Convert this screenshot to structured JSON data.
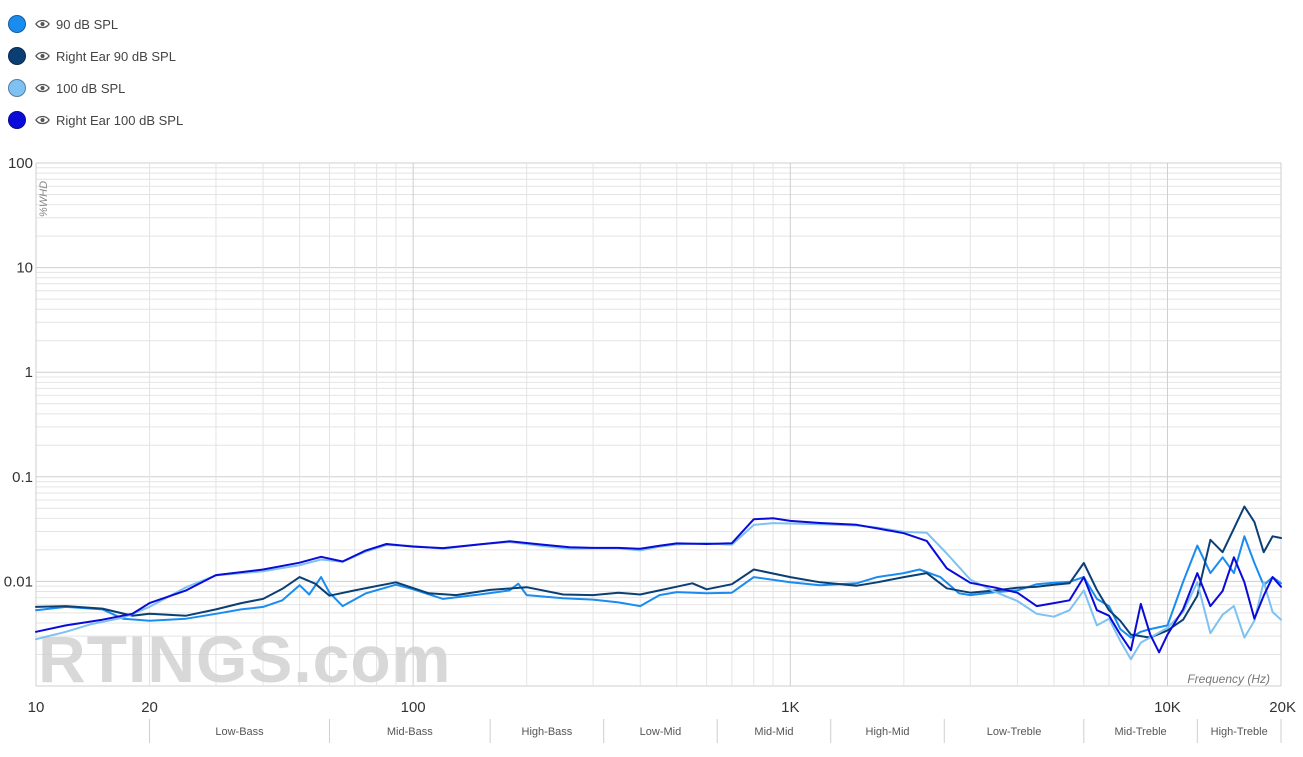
{
  "legend": [
    {
      "label": "90 dB SPL",
      "color": "#1a8cf0"
    },
    {
      "label": "Right Ear 90 dB SPL",
      "color": "#0b3f73"
    },
    {
      "label": "100 dB SPL",
      "color": "#7ec1f2"
    },
    {
      "label": "Right Ear 100 dB SPL",
      "color": "#0b0bd9"
    }
  ],
  "watermark": "RTINGS.com",
  "chart_data": {
    "type": "line",
    "xlabel": "Frequency (Hz)",
    "ylabel": "%WHD",
    "xscale": "log",
    "yscale": "log",
    "xlim": [
      10,
      20000
    ],
    "ylim": [
      0.001,
      100
    ],
    "grid": true,
    "legend_position": "top-left",
    "x_ticks": [
      {
        "value": 10,
        "label": "10"
      },
      {
        "value": 20,
        "label": "20"
      },
      {
        "value": 100,
        "label": "100"
      },
      {
        "value": 1000,
        "label": "1K"
      },
      {
        "value": 10000,
        "label": "10K"
      },
      {
        "value": 20000,
        "label": "20K"
      }
    ],
    "y_ticks": [
      {
        "value": 100,
        "label": "100"
      },
      {
        "value": 10,
        "label": "10"
      },
      {
        "value": 1,
        "label": "1"
      },
      {
        "value": 0.1,
        "label": "0.1"
      },
      {
        "value": 0.01,
        "label": "0.01"
      }
    ],
    "bands": [
      {
        "label": "Low-Bass",
        "from": 20,
        "to": 60
      },
      {
        "label": "Mid-Bass",
        "from": 60,
        "to": 160
      },
      {
        "label": "High-Bass",
        "from": 160,
        "to": 320
      },
      {
        "label": "Low-Mid",
        "from": 320,
        "to": 640
      },
      {
        "label": "Mid-Mid",
        "from": 640,
        "to": 1280
      },
      {
        "label": "High-Mid",
        "from": 1280,
        "to": 2560
      },
      {
        "label": "Low-Treble",
        "from": 2560,
        "to": 6000
      },
      {
        "label": "Mid-Treble",
        "from": 6000,
        "to": 12000
      },
      {
        "label": "High-Treble",
        "from": 12000,
        "to": 20000
      }
    ],
    "series": [
      {
        "name": "90 dB SPL",
        "color": "#1a8cf0",
        "points": [
          [
            10,
            0.0053
          ],
          [
            12,
            0.0057
          ],
          [
            15,
            0.0054
          ],
          [
            17,
            0.0044
          ],
          [
            20,
            0.0042
          ],
          [
            25,
            0.0044
          ],
          [
            30,
            0.0049
          ],
          [
            35,
            0.0054
          ],
          [
            40,
            0.0057
          ],
          [
            45,
            0.0066
          ],
          [
            50,
            0.0092
          ],
          [
            53,
            0.0075
          ],
          [
            57,
            0.011
          ],
          [
            60,
            0.0078
          ],
          [
            65,
            0.0058
          ],
          [
            75,
            0.0077
          ],
          [
            90,
            0.0093
          ],
          [
            100,
            0.0084
          ],
          [
            120,
            0.0068
          ],
          [
            150,
            0.0075
          ],
          [
            180,
            0.0082
          ],
          [
            190,
            0.0095
          ],
          [
            200,
            0.0074
          ],
          [
            250,
            0.0069
          ],
          [
            300,
            0.0067
          ],
          [
            350,
            0.0063
          ],
          [
            400,
            0.0058
          ],
          [
            450,
            0.0074
          ],
          [
            500,
            0.0079
          ],
          [
            600,
            0.0077
          ],
          [
            700,
            0.0078
          ],
          [
            800,
            0.011
          ],
          [
            1000,
            0.0098
          ],
          [
            1200,
            0.0092
          ],
          [
            1500,
            0.0096
          ],
          [
            1700,
            0.011
          ],
          [
            2000,
            0.012
          ],
          [
            2200,
            0.013
          ],
          [
            2500,
            0.011
          ],
          [
            2800,
            0.0077
          ],
          [
            3000,
            0.0074
          ],
          [
            3500,
            0.0079
          ],
          [
            4000,
            0.0082
          ],
          [
            4500,
            0.0094
          ],
          [
            5000,
            0.0097
          ],
          [
            5500,
            0.0099
          ],
          [
            6000,
            0.011
          ],
          [
            6500,
            0.0068
          ],
          [
            7000,
            0.0058
          ],
          [
            7500,
            0.0035
          ],
          [
            8000,
            0.0029
          ],
          [
            8500,
            0.0033
          ],
          [
            9000,
            0.0035
          ],
          [
            10000,
            0.0038
          ],
          [
            11000,
            0.0099
          ],
          [
            12000,
            0.022
          ],
          [
            13000,
            0.012
          ],
          [
            14000,
            0.017
          ],
          [
            15000,
            0.012
          ],
          [
            16000,
            0.027
          ],
          [
            17000,
            0.015
          ],
          [
            18000,
            0.0092
          ],
          [
            19000,
            0.011
          ],
          [
            20000,
            0.0096
          ]
        ]
      },
      {
        "name": "Right Ear 90 dB SPL",
        "color": "#0b3f73",
        "points": [
          [
            10,
            0.0057
          ],
          [
            12,
            0.0058
          ],
          [
            15,
            0.0055
          ],
          [
            18,
            0.0047
          ],
          [
            20,
            0.0049
          ],
          [
            25,
            0.0047
          ],
          [
            30,
            0.0054
          ],
          [
            35,
            0.0062
          ],
          [
            40,
            0.0068
          ],
          [
            45,
            0.0085
          ],
          [
            50,
            0.011
          ],
          [
            55,
            0.0095
          ],
          [
            60,
            0.0073
          ],
          [
            70,
            0.0082
          ],
          [
            90,
            0.0098
          ],
          [
            110,
            0.0077
          ],
          [
            130,
            0.0074
          ],
          [
            160,
            0.0083
          ],
          [
            200,
            0.0088
          ],
          [
            250,
            0.0075
          ],
          [
            300,
            0.0074
          ],
          [
            350,
            0.0078
          ],
          [
            400,
            0.0075
          ],
          [
            450,
            0.0082
          ],
          [
            500,
            0.0089
          ],
          [
            550,
            0.0096
          ],
          [
            600,
            0.0084
          ],
          [
            700,
            0.0094
          ],
          [
            800,
            0.013
          ],
          [
            1000,
            0.011
          ],
          [
            1200,
            0.0098
          ],
          [
            1500,
            0.0091
          ],
          [
            1700,
            0.0098
          ],
          [
            2000,
            0.011
          ],
          [
            2300,
            0.012
          ],
          [
            2600,
            0.0086
          ],
          [
            3000,
            0.0078
          ],
          [
            3500,
            0.0082
          ],
          [
            4000,
            0.0087
          ],
          [
            4500,
            0.0089
          ],
          [
            5000,
            0.0093
          ],
          [
            5500,
            0.0096
          ],
          [
            6000,
            0.015
          ],
          [
            6500,
            0.0083
          ],
          [
            7000,
            0.0053
          ],
          [
            7500,
            0.0042
          ],
          [
            8000,
            0.0031
          ],
          [
            9000,
            0.0029
          ],
          [
            10000,
            0.0034
          ],
          [
            11000,
            0.0043
          ],
          [
            12000,
            0.0073
          ],
          [
            13000,
            0.025
          ],
          [
            14000,
            0.019
          ],
          [
            15000,
            0.032
          ],
          [
            16000,
            0.052
          ],
          [
            17000,
            0.037
          ],
          [
            18000,
            0.019
          ],
          [
            19000,
            0.027
          ],
          [
            20000,
            0.026
          ]
        ]
      },
      {
        "name": "100 dB SPL",
        "color": "#7ec1f2",
        "points": [
          [
            10,
            0.0028
          ],
          [
            12,
            0.0033
          ],
          [
            14,
            0.0039
          ],
          [
            17,
            0.0045
          ],
          [
            20,
            0.0057
          ],
          [
            25,
            0.0088
          ],
          [
            30,
            0.0114
          ],
          [
            40,
            0.0125
          ],
          [
            50,
            0.0143
          ],
          [
            57,
            0.0162
          ],
          [
            65,
            0.0154
          ],
          [
            75,
            0.0193
          ],
          [
            85,
            0.0223
          ],
          [
            100,
            0.0218
          ],
          [
            120,
            0.0205
          ],
          [
            150,
            0.0226
          ],
          [
            180,
            0.0238
          ],
          [
            220,
            0.0218
          ],
          [
            260,
            0.0205
          ],
          [
            300,
            0.0207
          ],
          [
            350,
            0.0207
          ],
          [
            400,
            0.0198
          ],
          [
            450,
            0.0215
          ],
          [
            500,
            0.0226
          ],
          [
            600,
            0.0232
          ],
          [
            700,
            0.0224
          ],
          [
            800,
            0.0347
          ],
          [
            900,
            0.0361
          ],
          [
            1000,
            0.0358
          ],
          [
            1200,
            0.0352
          ],
          [
            1500,
            0.0342
          ],
          [
            1700,
            0.0327
          ],
          [
            2000,
            0.0298
          ],
          [
            2300,
            0.0292
          ],
          [
            2600,
            0.0185
          ],
          [
            3000,
            0.0104
          ],
          [
            3500,
            0.0079
          ],
          [
            4000,
            0.0065
          ],
          [
            4500,
            0.0049
          ],
          [
            5000,
            0.0046
          ],
          [
            5500,
            0.0053
          ],
          [
            6000,
            0.0082
          ],
          [
            6500,
            0.0038
          ],
          [
            7000,
            0.0044
          ],
          [
            7500,
            0.0027
          ],
          [
            8000,
            0.0018
          ],
          [
            8500,
            0.0026
          ],
          [
            9000,
            0.0029
          ],
          [
            10000,
            0.0036
          ],
          [
            11000,
            0.0051
          ],
          [
            12000,
            0.0098
          ],
          [
            13000,
            0.0032
          ],
          [
            14000,
            0.0048
          ],
          [
            15000,
            0.0058
          ],
          [
            16000,
            0.0029
          ],
          [
            17000,
            0.0042
          ],
          [
            18000,
            0.0099
          ],
          [
            19000,
            0.0051
          ],
          [
            20000,
            0.0043
          ]
        ]
      },
      {
        "name": "Right Ear 100 dB SPL",
        "color": "#0b0bd9",
        "points": [
          [
            10,
            0.0033
          ],
          [
            12,
            0.0038
          ],
          [
            15,
            0.0043
          ],
          [
            18,
            0.0049
          ],
          [
            20,
            0.0062
          ],
          [
            25,
            0.0082
          ],
          [
            30,
            0.0115
          ],
          [
            40,
            0.013
          ],
          [
            50,
            0.0151
          ],
          [
            57,
            0.0172
          ],
          [
            65,
            0.0155
          ],
          [
            75,
            0.0198
          ],
          [
            85,
            0.0228
          ],
          [
            100,
            0.0215
          ],
          [
            120,
            0.0208
          ],
          [
            150,
            0.0226
          ],
          [
            180,
            0.0242
          ],
          [
            220,
            0.0225
          ],
          [
            260,
            0.0212
          ],
          [
            300,
            0.0209
          ],
          [
            350,
            0.0209
          ],
          [
            400,
            0.0205
          ],
          [
            450,
            0.0219
          ],
          [
            500,
            0.0231
          ],
          [
            600,
            0.0228
          ],
          [
            700,
            0.0232
          ],
          [
            800,
            0.0393
          ],
          [
            900,
            0.0401
          ],
          [
            1000,
            0.0379
          ],
          [
            1200,
            0.0362
          ],
          [
            1500,
            0.0348
          ],
          [
            1700,
            0.0321
          ],
          [
            2000,
            0.0289
          ],
          [
            2300,
            0.0244
          ],
          [
            2600,
            0.0133
          ],
          [
            3000,
            0.0097
          ],
          [
            3500,
            0.0087
          ],
          [
            4000,
            0.0078
          ],
          [
            4500,
            0.0058
          ],
          [
            5000,
            0.0062
          ],
          [
            5500,
            0.0066
          ],
          [
            6000,
            0.011
          ],
          [
            6500,
            0.0053
          ],
          [
            7000,
            0.0047
          ],
          [
            7500,
            0.0031
          ],
          [
            8000,
            0.0022
          ],
          [
            8500,
            0.0061
          ],
          [
            9000,
            0.0031
          ],
          [
            9500,
            0.0021
          ],
          [
            10000,
            0.0031
          ],
          [
            11000,
            0.0054
          ],
          [
            12000,
            0.012
          ],
          [
            13000,
            0.0058
          ],
          [
            14000,
            0.0081
          ],
          [
            15000,
            0.017
          ],
          [
            16000,
            0.0098
          ],
          [
            17000,
            0.0044
          ],
          [
            18000,
            0.0073
          ],
          [
            19000,
            0.011
          ],
          [
            20000,
            0.0089
          ]
        ]
      }
    ]
  }
}
